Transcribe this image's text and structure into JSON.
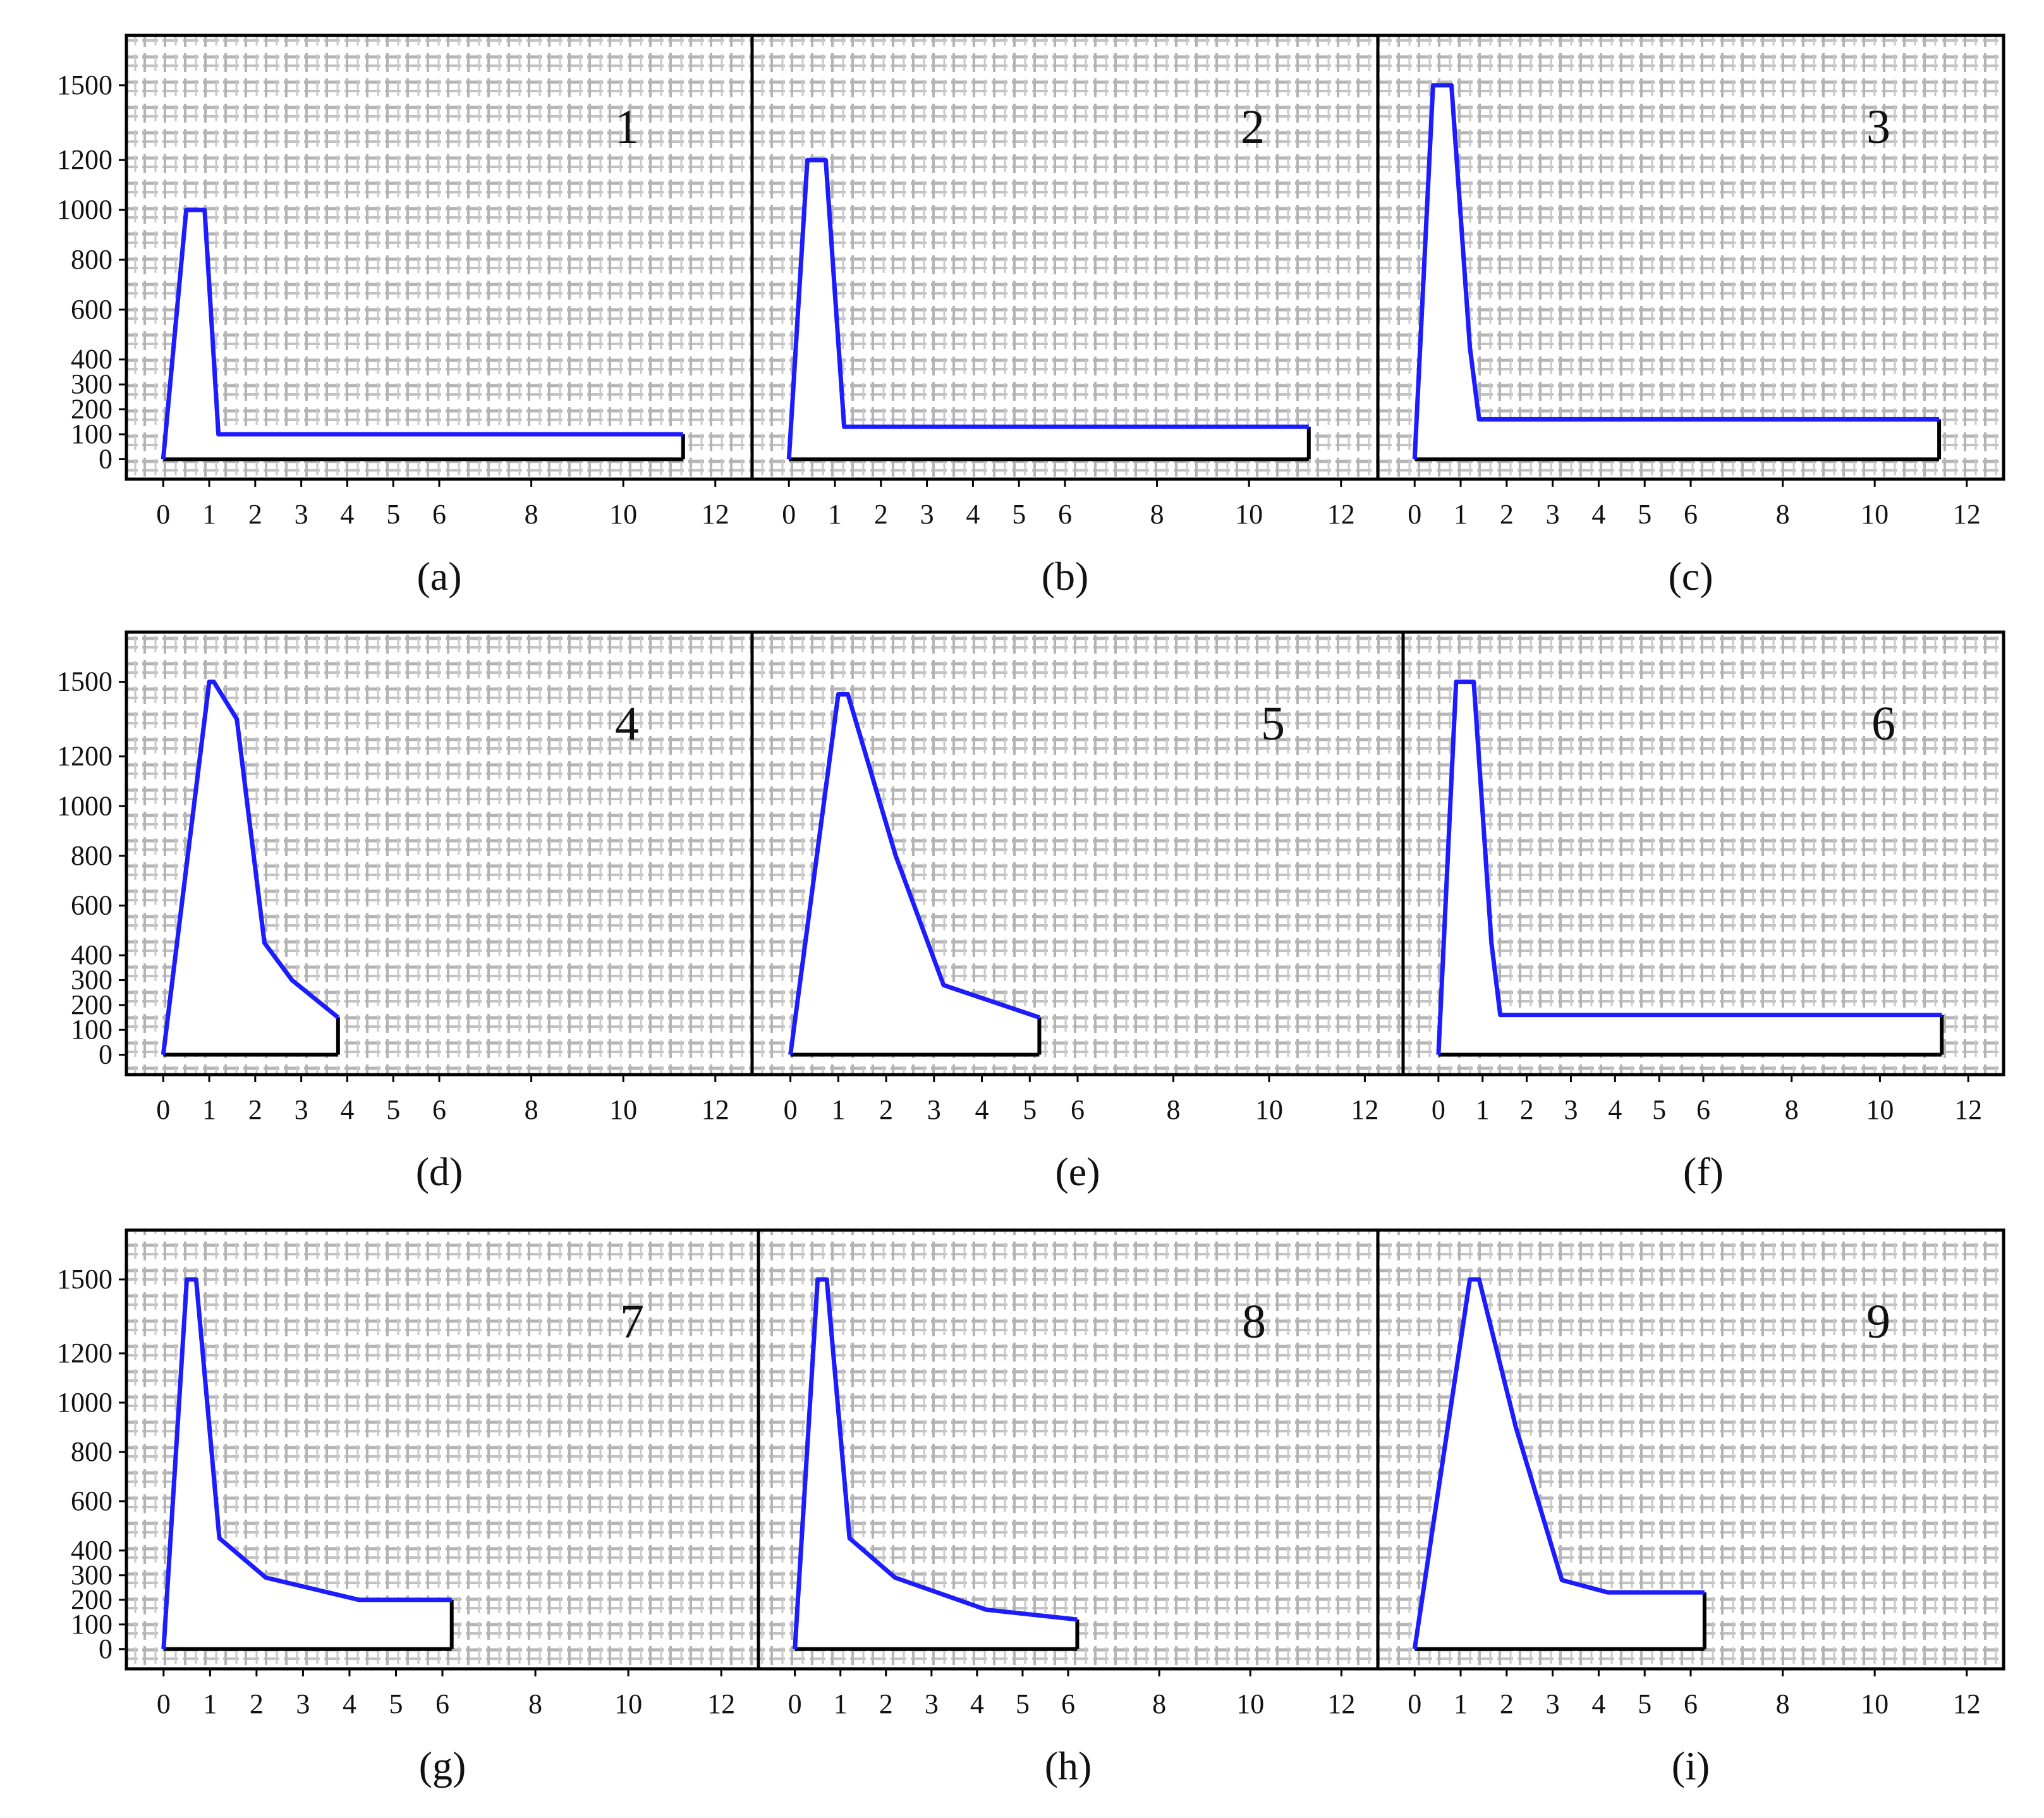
{
  "figure": {
    "colors": {
      "curve": "#1c1cff",
      "frame": "#000000",
      "grid": "#a9a9a9",
      "text": "#111111"
    }
  },
  "chart_data": [
    {
      "type": "line",
      "panel_label": "1",
      "caption": "(a)",
      "xticks": [
        0,
        1,
        2,
        3,
        4,
        5,
        6,
        8,
        10,
        12
      ],
      "yticks": [
        0,
        100,
        200,
        300,
        400,
        600,
        800,
        1000,
        1200,
        1500
      ],
      "xlim": [
        -0.8,
        12.8
      ],
      "ylim": [
        -80,
        1700
      ],
      "grid": true,
      "series": [
        {
          "points": [
            [
              0,
              0
            ],
            [
              0.5,
              1000
            ],
            [
              0.9,
              1000
            ],
            [
              1.2,
              100
            ],
            [
              11.3,
              100
            ],
            [
              11.3,
              0
            ]
          ]
        }
      ]
    },
    {
      "type": "line",
      "panel_label": "2",
      "caption": "(b)",
      "xticks": [
        0,
        1,
        2,
        3,
        4,
        5,
        6,
        8,
        10,
        12
      ],
      "yticks": [
        0,
        100,
        200,
        300,
        400,
        600,
        800,
        1000,
        1200,
        1500
      ],
      "xlim": [
        -0.8,
        12.8
      ],
      "ylim": [
        -80,
        1700
      ],
      "grid": true,
      "series": [
        {
          "points": [
            [
              0,
              0
            ],
            [
              0.4,
              1200
            ],
            [
              0.8,
              1200
            ],
            [
              1.2,
              130
            ],
            [
              11.3,
              130
            ],
            [
              11.3,
              0
            ]
          ]
        }
      ]
    },
    {
      "type": "line",
      "panel_label": "3",
      "caption": "(c)",
      "xticks": [
        0,
        1,
        2,
        3,
        4,
        5,
        6,
        8,
        10,
        12
      ],
      "yticks": [
        0,
        100,
        200,
        300,
        400,
        600,
        800,
        1000,
        1200,
        1500
      ],
      "xlim": [
        -0.8,
        12.8
      ],
      "ylim": [
        -80,
        1700
      ],
      "grid": true,
      "series": [
        {
          "points": [
            [
              0,
              0
            ],
            [
              0.4,
              1500
            ],
            [
              0.8,
              1500
            ],
            [
              1.2,
              450
            ],
            [
              1.4,
              160
            ],
            [
              11.4,
              160
            ],
            [
              11.4,
              0
            ]
          ]
        }
      ]
    },
    {
      "type": "line",
      "panel_label": "4",
      "caption": "(d)",
      "xticks": [
        0,
        1,
        2,
        3,
        4,
        5,
        6,
        8,
        10,
        12
      ],
      "yticks": [
        0,
        100,
        200,
        300,
        400,
        600,
        800,
        1000,
        1200,
        1500
      ],
      "xlim": [
        -0.8,
        12.8
      ],
      "ylim": [
        -80,
        1700
      ],
      "grid": true,
      "series": [
        {
          "points": [
            [
              0,
              0
            ],
            [
              1,
              1500
            ],
            [
              1.1,
              1500
            ],
            [
              1.6,
              1350
            ],
            [
              2.2,
              450
            ],
            [
              2.8,
              300
            ],
            [
              3.8,
              150
            ],
            [
              3.8,
              0
            ]
          ]
        }
      ]
    },
    {
      "type": "line",
      "panel_label": "5",
      "caption": "(e)",
      "xticks": [
        0,
        1,
        2,
        3,
        4,
        5,
        6,
        8,
        10,
        12
      ],
      "yticks": [
        0,
        100,
        200,
        300,
        400,
        600,
        800,
        1000,
        1200,
        1500
      ],
      "xlim": [
        -0.8,
        12.8
      ],
      "ylim": [
        -80,
        1700
      ],
      "grid": true,
      "series": [
        {
          "points": [
            [
              0,
              0
            ],
            [
              1,
              1450
            ],
            [
              1.2,
              1450
            ],
            [
              2.2,
              800
            ],
            [
              3.2,
              280
            ],
            [
              5.2,
              150
            ],
            [
              5.2,
              0
            ]
          ]
        }
      ]
    },
    {
      "type": "line",
      "panel_label": "6",
      "caption": "(f)",
      "xticks": [
        0,
        1,
        2,
        3,
        4,
        5,
        6,
        8,
        10,
        12
      ],
      "yticks": [
        0,
        100,
        200,
        300,
        400,
        600,
        800,
        1000,
        1200,
        1500
      ],
      "xlim": [
        -0.8,
        12.8
      ],
      "ylim": [
        -80,
        1700
      ],
      "grid": true,
      "series": [
        {
          "points": [
            [
              0,
              0
            ],
            [
              0.4,
              1500
            ],
            [
              0.8,
              1500
            ],
            [
              1.2,
              450
            ],
            [
              1.4,
              160
            ],
            [
              11.4,
              160
            ],
            [
              11.4,
              0
            ]
          ]
        }
      ]
    },
    {
      "type": "line",
      "panel_label": "7",
      "caption": "(g)",
      "xticks": [
        0,
        1,
        2,
        3,
        4,
        5,
        6,
        8,
        10,
        12
      ],
      "yticks": [
        0,
        100,
        200,
        300,
        400,
        600,
        800,
        1000,
        1200,
        1500
      ],
      "xlim": [
        -0.8,
        12.8
      ],
      "ylim": [
        -80,
        1700
      ],
      "grid": true,
      "series": [
        {
          "points": [
            [
              0,
              0
            ],
            [
              0.5,
              1500
            ],
            [
              0.7,
              1500
            ],
            [
              1.2,
              450
            ],
            [
              2.2,
              290
            ],
            [
              4.2,
              200
            ],
            [
              6.2,
              200
            ],
            [
              6.2,
              0
            ]
          ]
        }
      ]
    },
    {
      "type": "line",
      "panel_label": "8",
      "caption": "(h)",
      "xticks": [
        0,
        1,
        2,
        3,
        4,
        5,
        6,
        8,
        10,
        12
      ],
      "yticks": [
        0,
        100,
        200,
        300,
        400,
        600,
        800,
        1000,
        1200,
        1500
      ],
      "xlim": [
        -0.8,
        12.8
      ],
      "ylim": [
        -80,
        1700
      ],
      "grid": true,
      "series": [
        {
          "points": [
            [
              0,
              0
            ],
            [
              0.5,
              1500
            ],
            [
              0.7,
              1500
            ],
            [
              1.2,
              450
            ],
            [
              2.2,
              290
            ],
            [
              4.2,
              160
            ],
            [
              6.2,
              120
            ],
            [
              6.2,
              0
            ]
          ]
        }
      ]
    },
    {
      "type": "line",
      "panel_label": "9",
      "caption": "(i)",
      "xticks": [
        0,
        1,
        2,
        3,
        4,
        5,
        6,
        8,
        10,
        12
      ],
      "yticks": [
        0,
        100,
        200,
        300,
        400,
        600,
        800,
        1000,
        1200,
        1500
      ],
      "xlim": [
        -0.8,
        12.8
      ],
      "ylim": [
        -80,
        1700
      ],
      "grid": true,
      "series": [
        {
          "points": [
            [
              0,
              0
            ],
            [
              1.2,
              1500
            ],
            [
              1.4,
              1500
            ],
            [
              2.2,
              900
            ],
            [
              3.2,
              280
            ],
            [
              4.2,
              230
            ],
            [
              6.3,
              230
            ],
            [
              6.3,
              0
            ]
          ]
        }
      ]
    }
  ]
}
